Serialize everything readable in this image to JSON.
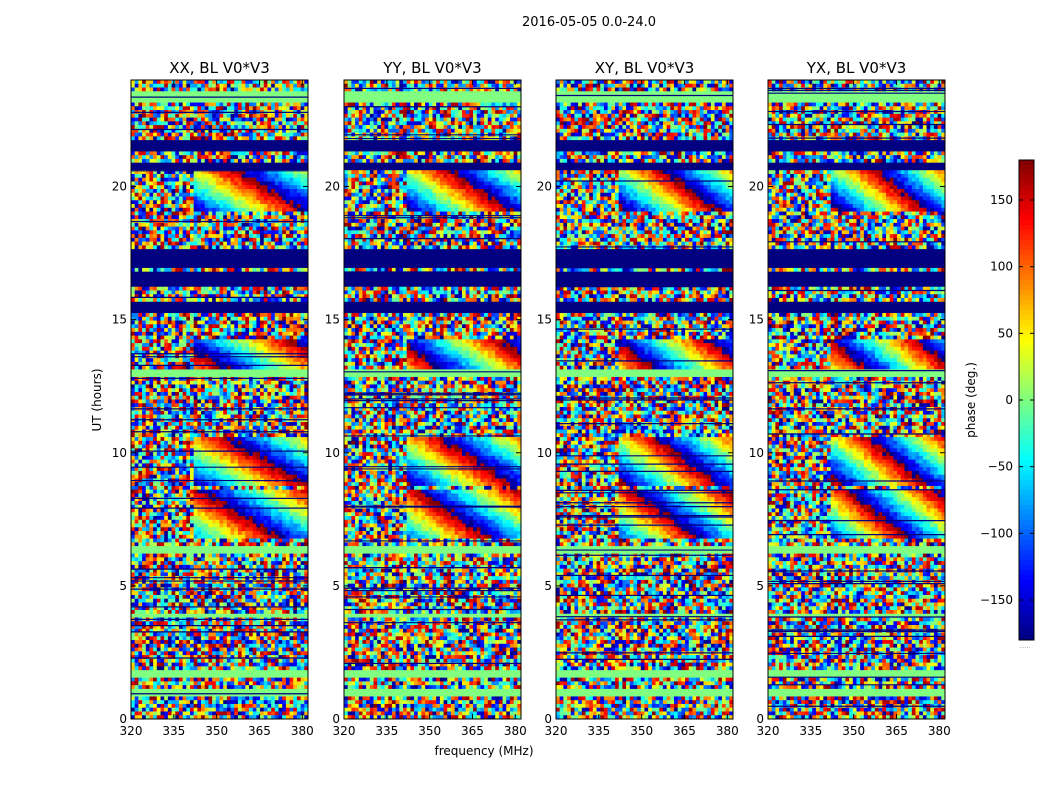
{
  "chart_data": {
    "type": "heatmap",
    "title": "2016-05-05 0.0-24.0",
    "xlabel": "frequency (MHz)",
    "ylabel": "UT (hours)",
    "xlim": [
      320,
      382
    ],
    "ylim": [
      0,
      24
    ],
    "xticks": [
      320,
      335,
      350,
      365,
      380
    ],
    "yticks": [
      0,
      5,
      10,
      15,
      20
    ],
    "colormap": "jet",
    "colorbar": {
      "label": "phase (deg.)",
      "range": [
        -180,
        180
      ],
      "ticks": [
        150,
        100,
        50,
        0,
        -50,
        -100,
        -150
      ],
      "tick_labels": [
        "150",
        "100",
        "50",
        "0",
        "−50",
        "−100",
        "−150"
      ],
      "extra_label": "......"
    },
    "panels": [
      {
        "name": "XX",
        "title": "XX, BL V0*V3"
      },
      {
        "name": "YY",
        "title": "YY, BL V0*V3"
      },
      {
        "name": "XY",
        "title": "XY, BL V0*V3"
      },
      {
        "name": "YX",
        "title": "YX, BL V0*V3"
      }
    ],
    "flagged_value_deg": -180,
    "empty_value_deg": 0,
    "time_bands_hours": [
      {
        "start": 23.2,
        "end": 23.6,
        "kind": "empty"
      },
      {
        "start": 21.3,
        "end": 21.8,
        "kind": "flagged"
      },
      {
        "start": 20.6,
        "end": 20.9,
        "kind": "flagged"
      },
      {
        "start": 17.0,
        "end": 17.7,
        "kind": "flagged"
      },
      {
        "start": 16.3,
        "end": 16.8,
        "kind": "flagged"
      },
      {
        "start": 15.3,
        "end": 15.6,
        "kind": "flagged"
      },
      {
        "start": 12.9,
        "end": 13.1,
        "kind": "empty"
      },
      {
        "start": 6.2,
        "end": 6.5,
        "kind": "empty"
      },
      {
        "start": 3.8,
        "end": 4.0,
        "kind": "empty"
      },
      {
        "start": 1.5,
        "end": 1.8,
        "kind": "empty"
      },
      {
        "start": 0.9,
        "end": 1.1,
        "kind": "empty"
      }
    ],
    "fringe_regions_hours": [
      {
        "start": 6.8,
        "end": 8.6
      },
      {
        "start": 8.8,
        "end": 10.6
      },
      {
        "start": 13.2,
        "end": 14.3
      },
      {
        "start": 19.0,
        "end": 20.6
      }
    ]
  }
}
